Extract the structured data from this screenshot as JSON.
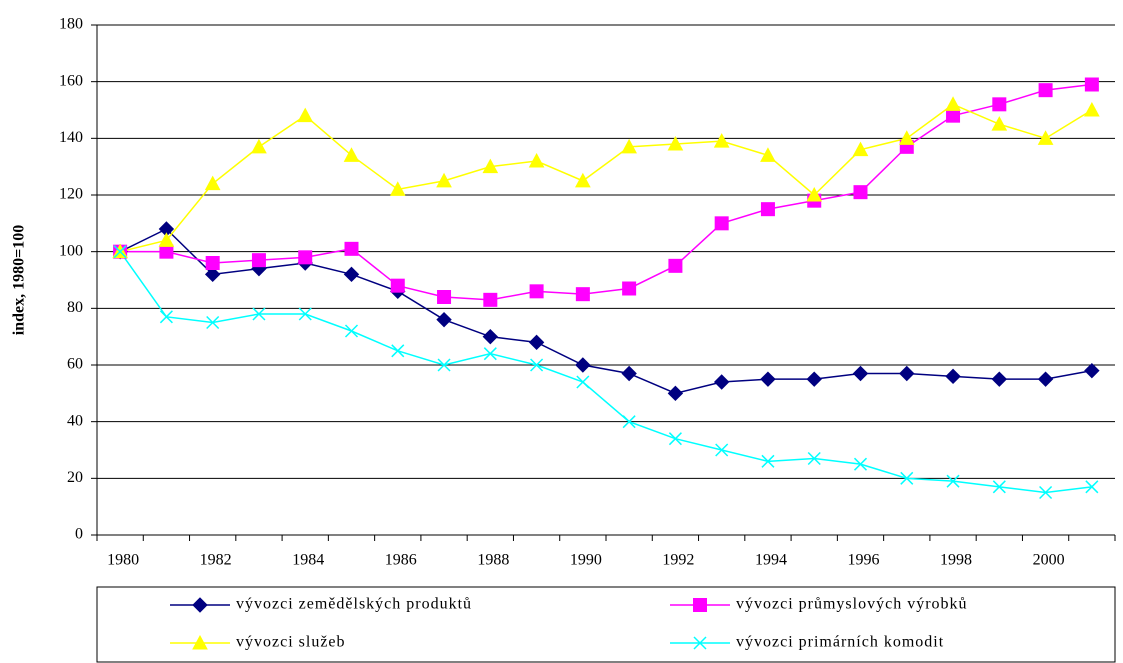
{
  "chart_data": {
    "type": "line",
    "y_label": "index, 1980=100",
    "categories": [
      "1980",
      null,
      "1982",
      null,
      "1984",
      null,
      "1986",
      null,
      "1988",
      null,
      "1990",
      null,
      "1992",
      null,
      "1994",
      null,
      "1996",
      null,
      "1998",
      null,
      "2000",
      null
    ],
    "series": [
      {
        "name": "vývozci zemědělských produktů",
        "color": "#000080",
        "marker": "diamond",
        "values": [
          100,
          108,
          92,
          94,
          96,
          92,
          86,
          76,
          70,
          68,
          60,
          57,
          50,
          54,
          55,
          55,
          57,
          57,
          56,
          55,
          55,
          58
        ]
      },
      {
        "name": "vývozci průmyslových výrobků",
        "color": "#ff00ff",
        "marker": "square",
        "values": [
          100,
          100,
          96,
          97,
          98,
          101,
          88,
          84,
          83,
          86,
          85,
          87,
          95,
          110,
          115,
          118,
          121,
          137,
          148,
          152,
          157,
          159
        ]
      },
      {
        "name": "vývozci služeb",
        "color": "#ffff00",
        "marker": "triangle",
        "values": [
          100,
          104,
          124,
          137,
          148,
          134,
          122,
          125,
          130,
          132,
          125,
          137,
          138,
          139,
          134,
          120,
          136,
          140,
          152,
          145,
          140,
          150
        ]
      },
      {
        "name": "vývozci primárních komodit",
        "color": "#00ffff",
        "marker": "x",
        "values": [
          100,
          77,
          75,
          78,
          78,
          72,
          65,
          60,
          64,
          60,
          54,
          40,
          34,
          30,
          26,
          27,
          25,
          20,
          19,
          17,
          15,
          17
        ]
      }
    ],
    "ylim": [
      0,
      180
    ],
    "yticks": [
      0,
      20,
      40,
      60,
      80,
      100,
      120,
      140,
      160,
      180
    ],
    "grid": true
  }
}
